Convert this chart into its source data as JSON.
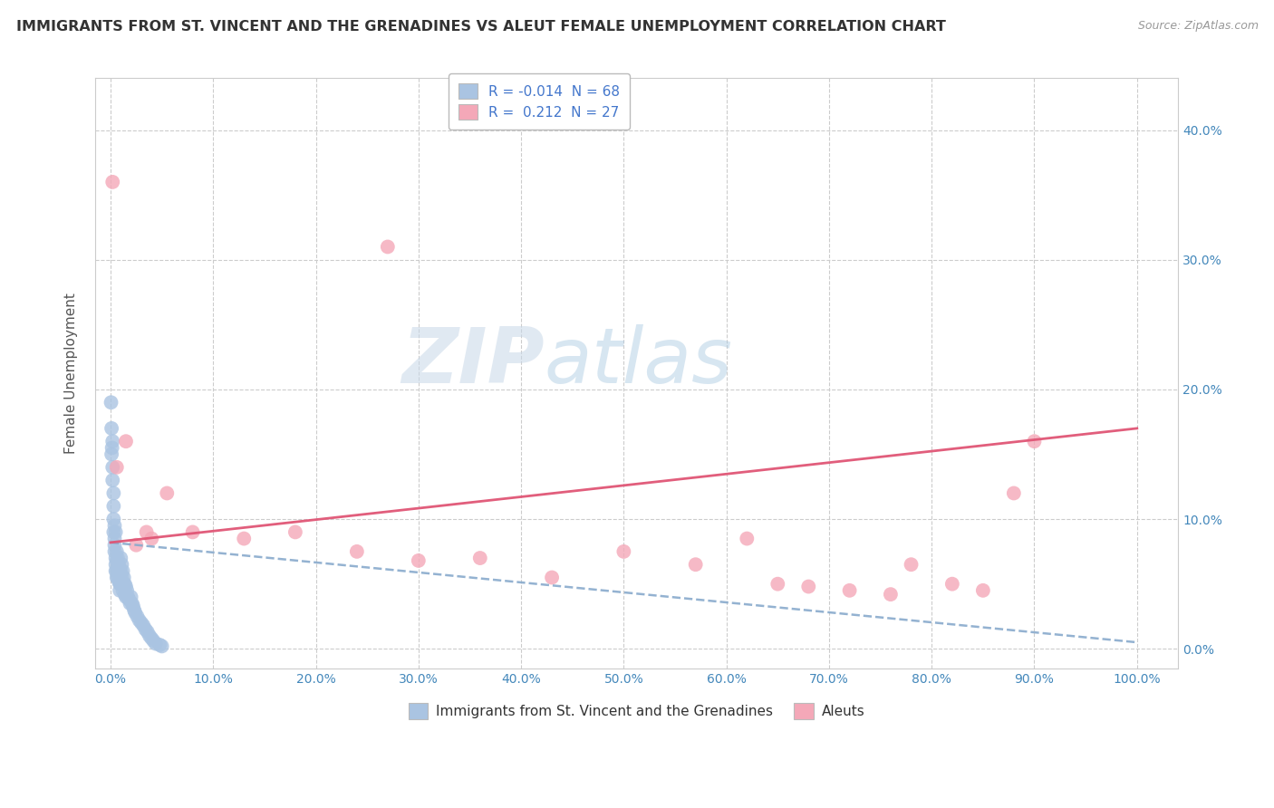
{
  "title": "IMMIGRANTS FROM ST. VINCENT AND THE GRENADINES VS ALEUT FEMALE UNEMPLOYMENT CORRELATION CHART",
  "source": "Source: ZipAtlas.com",
  "ylabel": "Female Unemployment",
  "legend_labels": [
    "Immigrants from St. Vincent and the Grenadines",
    "Aleuts"
  ],
  "r_values": [
    -0.014,
    0.212
  ],
  "n_values": [
    68,
    27
  ],
  "blue_color": "#aac4e2",
  "pink_color": "#f4a8b8",
  "blue_line_color": "#88aacc",
  "pink_line_color": "#e05575",
  "x_ticks": [
    0.0,
    0.1,
    0.2,
    0.3,
    0.4,
    0.5,
    0.6,
    0.7,
    0.8,
    0.9,
    1.0
  ],
  "y_ticks": [
    0.0,
    0.1,
    0.2,
    0.3,
    0.4
  ],
  "xlim": [
    -0.015,
    1.04
  ],
  "ylim": [
    -0.015,
    0.44
  ],
  "blue_scatter_x": [
    0.0005,
    0.001,
    0.001,
    0.0015,
    0.002,
    0.002,
    0.002,
    0.003,
    0.003,
    0.003,
    0.003,
    0.004,
    0.004,
    0.004,
    0.004,
    0.005,
    0.005,
    0.005,
    0.005,
    0.006,
    0.006,
    0.006,
    0.006,
    0.007,
    0.007,
    0.007,
    0.008,
    0.008,
    0.008,
    0.009,
    0.009,
    0.009,
    0.009,
    0.01,
    0.01,
    0.01,
    0.011,
    0.011,
    0.012,
    0.012,
    0.012,
    0.013,
    0.013,
    0.014,
    0.014,
    0.015,
    0.015,
    0.016,
    0.017,
    0.018,
    0.019,
    0.02,
    0.021,
    0.022,
    0.023,
    0.024,
    0.026,
    0.028,
    0.03,
    0.032,
    0.034,
    0.036,
    0.038,
    0.04,
    0.042,
    0.044,
    0.048,
    0.05
  ],
  "blue_scatter_y": [
    0.19,
    0.17,
    0.15,
    0.155,
    0.14,
    0.13,
    0.16,
    0.12,
    0.11,
    0.1,
    0.09,
    0.095,
    0.085,
    0.08,
    0.075,
    0.07,
    0.065,
    0.06,
    0.09,
    0.075,
    0.068,
    0.06,
    0.055,
    0.07,
    0.062,
    0.055,
    0.065,
    0.058,
    0.052,
    0.06,
    0.055,
    0.05,
    0.045,
    0.07,
    0.06,
    0.05,
    0.065,
    0.055,
    0.06,
    0.05,
    0.045,
    0.055,
    0.048,
    0.05,
    0.042,
    0.048,
    0.04,
    0.045,
    0.04,
    0.038,
    0.035,
    0.04,
    0.035,
    0.033,
    0.03,
    0.028,
    0.025,
    0.022,
    0.02,
    0.018,
    0.015,
    0.013,
    0.01,
    0.008,
    0.006,
    0.004,
    0.003,
    0.002
  ],
  "pink_scatter_x": [
    0.002,
    0.006,
    0.015,
    0.025,
    0.04,
    0.055,
    0.08,
    0.13,
    0.18,
    0.24,
    0.3,
    0.36,
    0.43,
    0.5,
    0.57,
    0.65,
    0.68,
    0.72,
    0.76,
    0.78,
    0.82,
    0.85,
    0.88,
    0.035,
    0.27,
    0.62,
    0.9
  ],
  "pink_scatter_y": [
    0.36,
    0.14,
    0.16,
    0.08,
    0.085,
    0.12,
    0.09,
    0.085,
    0.09,
    0.075,
    0.068,
    0.07,
    0.055,
    0.075,
    0.065,
    0.05,
    0.048,
    0.045,
    0.042,
    0.065,
    0.05,
    0.045,
    0.12,
    0.09,
    0.31,
    0.085,
    0.16
  ],
  "blue_trend_x": [
    0.0,
    1.0
  ],
  "blue_trend_y": [
    0.082,
    0.005
  ],
  "pink_trend_x": [
    0.0,
    1.0
  ],
  "pink_trend_y": [
    0.082,
    0.17
  ]
}
